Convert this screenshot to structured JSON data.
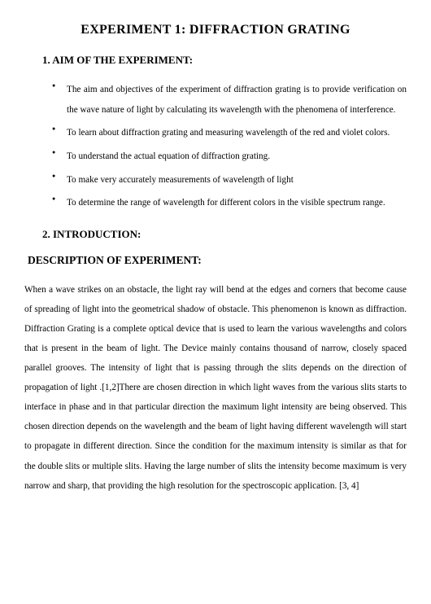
{
  "title": "EXPERIMENT 1: DIFFRACTION GRATING",
  "section1": {
    "heading": "1.  AIM OF THE EXPERIMENT:",
    "bullets": [
      "The aim and objectives of the experiment of diffraction grating is to provide verification on the wave nature of light by calculating its wavelength with the phenomena of interference.",
      "To learn about diffraction grating and measuring wavelength of the red and violet colors.",
      "To understand the actual equation of diffraction grating.",
      "To make very accurately measurements of wavelength of light",
      "To determine the range of wavelength for different colors in the visible spectrum range."
    ]
  },
  "section2": {
    "heading": "2.  INTRODUCTION:",
    "subheading": "DESCRIPTION OF EXPERIMENT:",
    "paragraph": "When a wave strikes on an obstacle, the light ray will bend at the edges and corners that become cause of spreading of light into the geometrical shadow of obstacle. This phenomenon is known as diffraction. Diffraction Grating is a complete optical device that is used to learn the various wavelengths and colors that is present in the beam of light. The Device mainly contains thousand of narrow, closely spaced parallel grooves. The intensity of light that is passing through the slits depends on the direction of propagation of light .[1,2]There are chosen direction in which light waves from the various slits starts to interface in phase and in that particular direction the maximum light intensity are being observed. This chosen direction depends on the wavelength and the beam of light having different wavelength will start to propagate in different direction. Since the condition for the maximum intensity is similar as that for the double slits or multiple slits. Having the large number of slits the intensity become maximum is very narrow and sharp, that providing the high resolution for the spectroscopic application. [3, 4]"
  },
  "style": {
    "background_color": "#ffffff",
    "text_color": "#000000",
    "font_family": "Times New Roman",
    "title_fontsize": 16,
    "heading_fontsize": 13,
    "body_fontsize": 11.2,
    "line_height": 2.15
  }
}
